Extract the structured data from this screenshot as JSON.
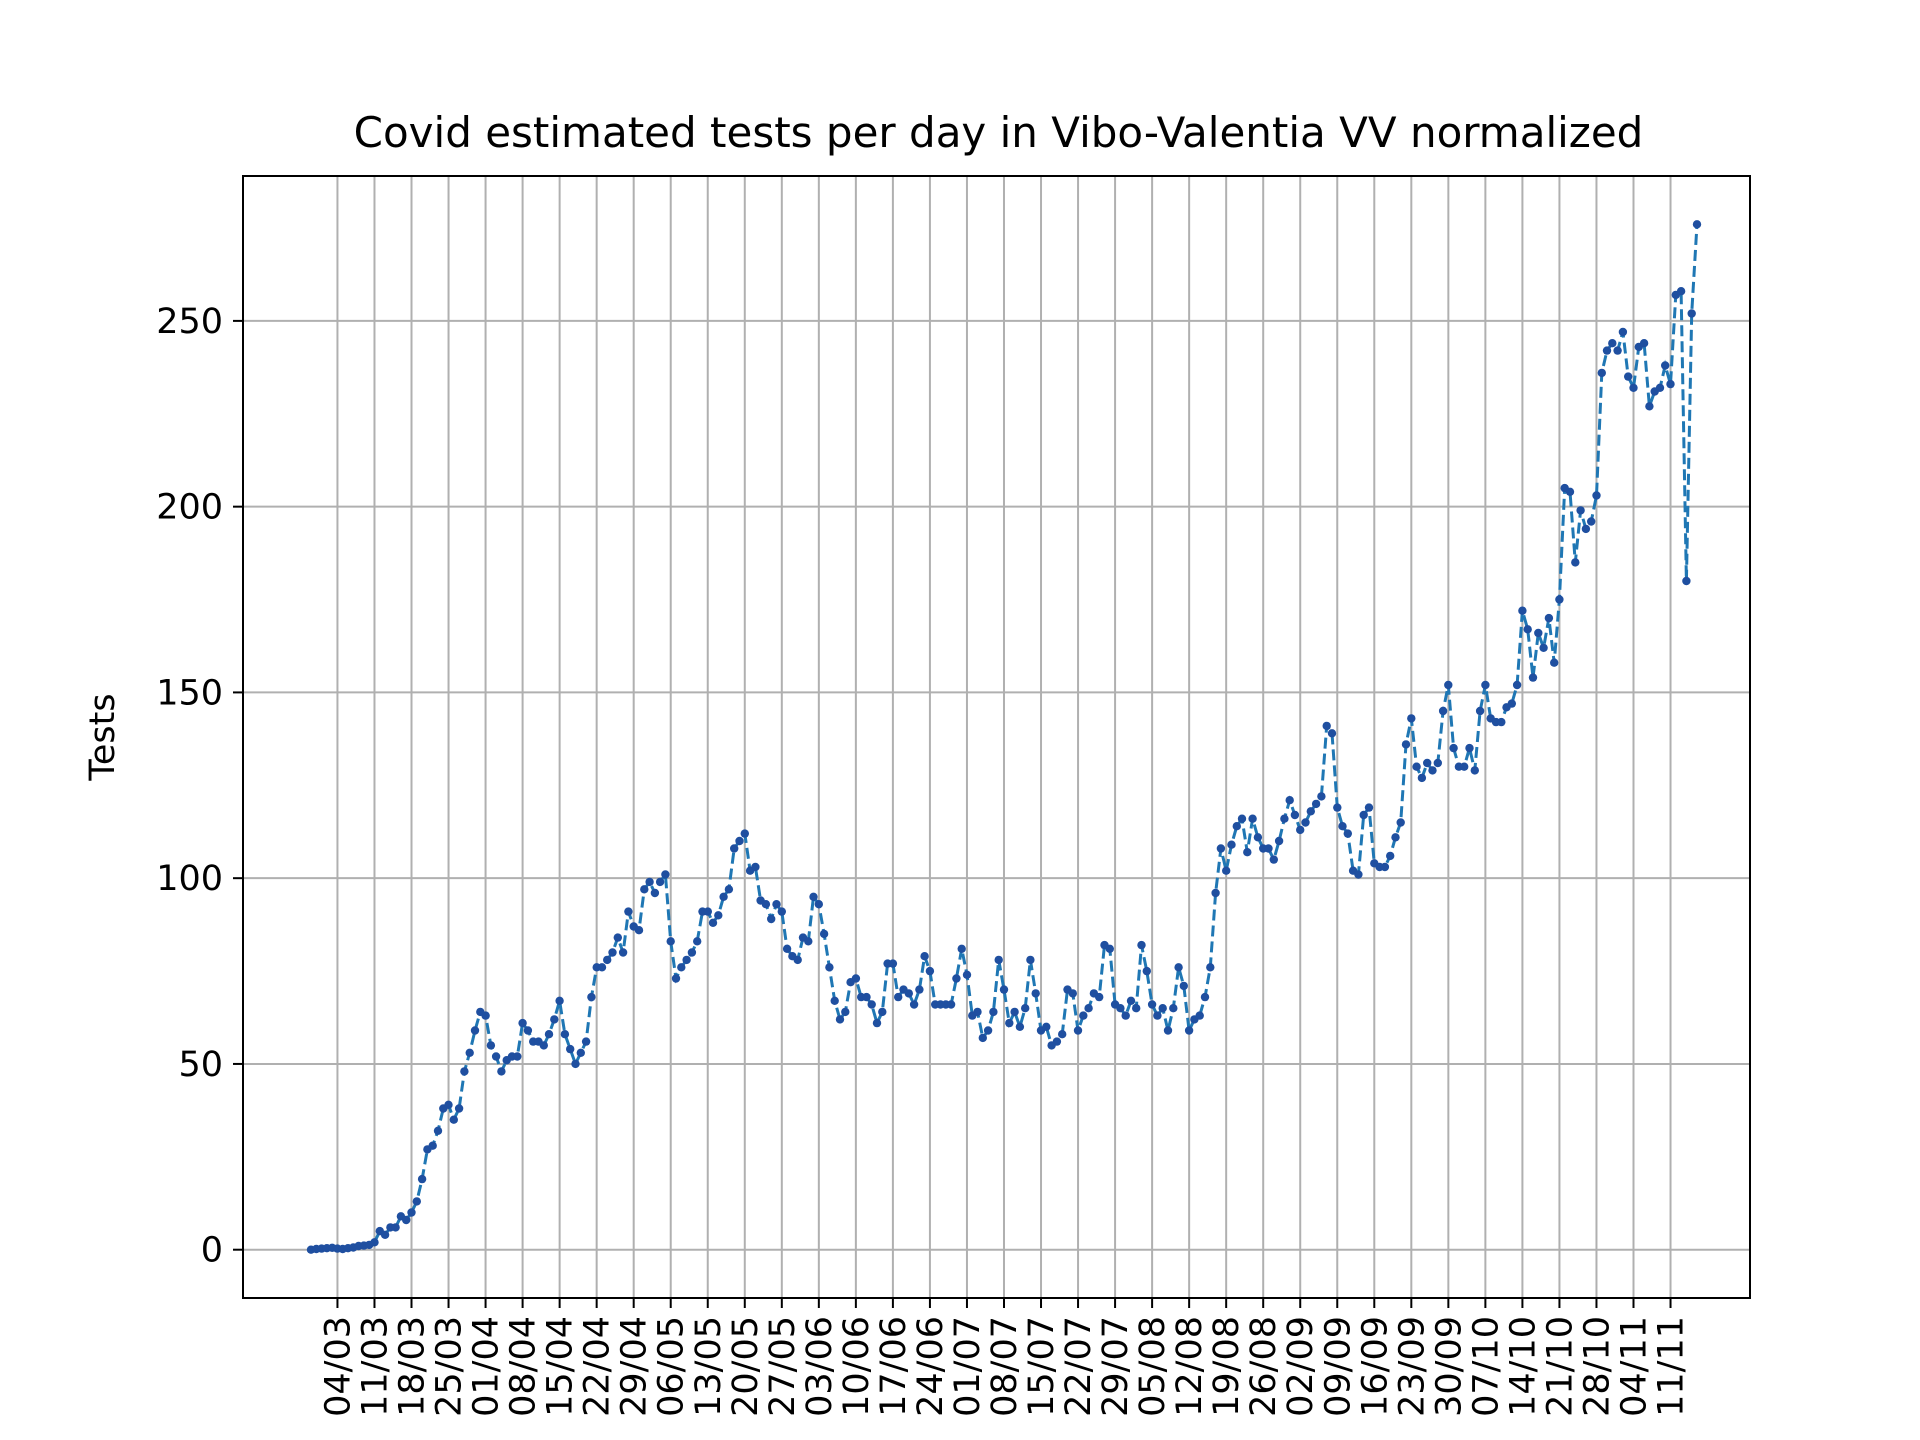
{
  "chart_data": {
    "type": "line",
    "title": "Covid estimated tests per day in Vibo-Valentia VV normalized",
    "xlabel": "",
    "ylabel": "Tests",
    "ylim": [
      -13,
      289
    ],
    "yticks": [
      0,
      50,
      100,
      150,
      200,
      250
    ],
    "xticks": [
      "04/03",
      "11/03",
      "18/03",
      "25/03",
      "01/04",
      "08/04",
      "15/04",
      "22/04",
      "29/04",
      "06/05",
      "13/05",
      "20/05",
      "27/05",
      "03/06",
      "10/06",
      "17/06",
      "24/06",
      "01/07",
      "08/07",
      "15/07",
      "22/07",
      "29/07",
      "05/08",
      "12/08",
      "19/08",
      "26/08",
      "02/09",
      "09/09",
      "16/09",
      "23/09",
      "30/09",
      "07/10",
      "14/10",
      "21/10",
      "28/10",
      "04/11",
      "11/11"
    ],
    "grid": true,
    "line_style": "dashed",
    "colors": {
      "line": "#1f77b4",
      "marker": "#1f4fa0"
    },
    "series": [
      {
        "start_date": "2020-02-28",
        "values": [
          0,
          0.2,
          0.3,
          0.4,
          0.5,
          0.3,
          0.2,
          0.4,
          0.6,
          1,
          1.1,
          1.3,
          2,
          5,
          4,
          6,
          6,
          9,
          8,
          10,
          13,
          19,
          27,
          28,
          32,
          38,
          39,
          35,
          38,
          48,
          53,
          59,
          64,
          63,
          55,
          52,
          48,
          51,
          52,
          52,
          61,
          59,
          56,
          56,
          55,
          58,
          62,
          67,
          58,
          54,
          50,
          53,
          56,
          68,
          76,
          76,
          78,
          80,
          84,
          80,
          91,
          87,
          86,
          97,
          99,
          96,
          99,
          101,
          83,
          73,
          76,
          78,
          80,
          83,
          91,
          91,
          88,
          90,
          95,
          97,
          108,
          110,
          112,
          102,
          103,
          94,
          93,
          89,
          93,
          91,
          81,
          79,
          78,
          84,
          83,
          95,
          93,
          85,
          76,
          67,
          62,
          64,
          72,
          73,
          68,
          68,
          66,
          61,
          64,
          77,
          77,
          68,
          70,
          69,
          66,
          70,
          79,
          75,
          66,
          66,
          66,
          66,
          73,
          81,
          74,
          63,
          64,
          57,
          59,
          64,
          78,
          70,
          61,
          64,
          60,
          65,
          78,
          69,
          59,
          60,
          55,
          56,
          58,
          70,
          69,
          59,
          63,
          65,
          69,
          68,
          82,
          81,
          66,
          65,
          63,
          67,
          65,
          82,
          75,
          66,
          63,
          65,
          59,
          65,
          76,
          71,
          59,
          62,
          63,
          68,
          76,
          96,
          108,
          102,
          109,
          114,
          116,
          107,
          116,
          111,
          108,
          108,
          105,
          110,
          116,
          121,
          117,
          113,
          115,
          118,
          120,
          122,
          141,
          139,
          119,
          114,
          112,
          102,
          101,
          117,
          119,
          104,
          103,
          103,
          106,
          111,
          115,
          136,
          143,
          130,
          127,
          131,
          129,
          131,
          145,
          152,
          135,
          130,
          130,
          135,
          129,
          145,
          152,
          143,
          142,
          142,
          146,
          147,
          152,
          172,
          167,
          154,
          166,
          162,
          170,
          158,
          175,
          205,
          204,
          185,
          199,
          194,
          196,
          203,
          236,
          242,
          244,
          242,
          247,
          235,
          232,
          243,
          244,
          227,
          231,
          232,
          238,
          233,
          257,
          258,
          180,
          252,
          276
        ]
      }
    ]
  }
}
